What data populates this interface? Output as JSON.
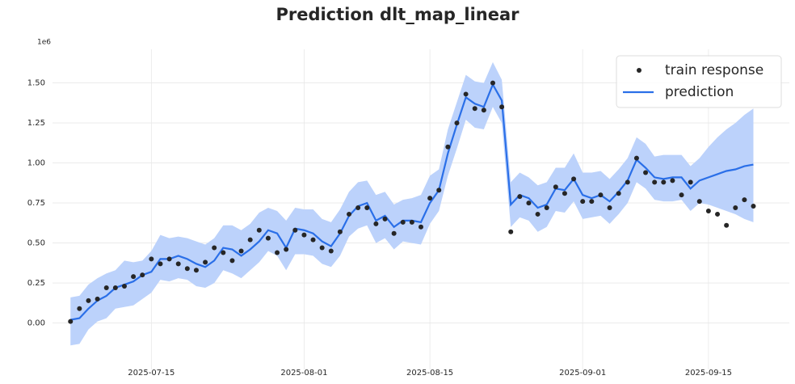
{
  "chart_data": {
    "type": "line",
    "title": "Prediction dlt_map_linear",
    "y_offset_label": "1e6",
    "x": [
      "2025-07-06",
      "2025-07-07",
      "2025-07-08",
      "2025-07-09",
      "2025-07-10",
      "2025-07-11",
      "2025-07-12",
      "2025-07-13",
      "2025-07-14",
      "2025-07-15",
      "2025-07-16",
      "2025-07-17",
      "2025-07-18",
      "2025-07-19",
      "2025-07-20",
      "2025-07-21",
      "2025-07-22",
      "2025-07-23",
      "2025-07-24",
      "2025-07-25",
      "2025-07-26",
      "2025-07-27",
      "2025-07-28",
      "2025-07-29",
      "2025-07-30",
      "2025-07-31",
      "2025-08-01",
      "2025-08-02",
      "2025-08-03",
      "2025-08-04",
      "2025-08-05",
      "2025-08-06",
      "2025-08-07",
      "2025-08-08",
      "2025-08-09",
      "2025-08-10",
      "2025-08-11",
      "2025-08-12",
      "2025-08-13",
      "2025-08-14",
      "2025-08-15",
      "2025-08-16",
      "2025-08-17",
      "2025-08-18",
      "2025-08-19",
      "2025-08-20",
      "2025-08-21",
      "2025-08-22",
      "2025-08-23",
      "2025-08-24",
      "2025-08-25",
      "2025-08-26",
      "2025-08-27",
      "2025-08-28",
      "2025-08-29",
      "2025-08-30",
      "2025-08-31",
      "2025-09-01",
      "2025-09-02",
      "2025-09-03",
      "2025-09-04",
      "2025-09-05",
      "2025-09-06",
      "2025-09-07",
      "2025-09-08",
      "2025-09-09",
      "2025-09-10",
      "2025-09-11",
      "2025-09-12",
      "2025-09-13",
      "2025-09-14",
      "2025-09-15",
      "2025-09-16",
      "2025-09-17",
      "2025-09-18",
      "2025-09-19",
      "2025-09-20"
    ],
    "series": [
      {
        "name": "train response",
        "type": "scatter",
        "color": "#262626",
        "values": [
          0.01,
          0.09,
          0.14,
          0.15,
          0.22,
          0.22,
          0.23,
          0.29,
          0.3,
          0.4,
          0.37,
          0.4,
          0.37,
          0.34,
          0.33,
          0.38,
          0.47,
          0.44,
          0.39,
          0.45,
          0.52,
          0.58,
          0.53,
          0.44,
          0.46,
          0.58,
          0.55,
          0.52,
          0.47,
          0.45,
          0.57,
          0.68,
          0.72,
          0.72,
          0.62,
          0.65,
          0.56,
          0.63,
          0.63,
          0.6,
          0.78,
          0.83,
          1.1,
          1.25,
          1.43,
          1.34,
          1.33,
          1.5,
          1.35,
          0.57,
          0.79,
          0.75,
          0.68,
          0.72,
          0.85,
          0.81,
          0.9,
          0.76,
          0.76,
          0.8,
          0.72,
          0.81,
          0.88,
          1.03,
          0.94,
          0.88,
          0.88,
          0.89,
          0.8,
          0.88,
          0.76,
          0.7,
          0.68,
          0.61,
          0.72,
          0.77,
          0.73
        ]
      },
      {
        "name": "prediction",
        "type": "line",
        "color": "#2a6fe8",
        "band_color": "#bcd2fb",
        "values": [
          0.02,
          0.03,
          0.09,
          0.14,
          0.17,
          0.22,
          0.24,
          0.26,
          0.3,
          0.32,
          0.4,
          0.4,
          0.42,
          0.4,
          0.37,
          0.35,
          0.39,
          0.47,
          0.46,
          0.42,
          0.46,
          0.51,
          0.58,
          0.56,
          0.47,
          0.59,
          0.58,
          0.56,
          0.51,
          0.48,
          0.56,
          0.67,
          0.73,
          0.75,
          0.64,
          0.67,
          0.6,
          0.64,
          0.64,
          0.63,
          0.75,
          0.83,
          1.06,
          1.24,
          1.41,
          1.37,
          1.35,
          1.49,
          1.39,
          0.74,
          0.8,
          0.78,
          0.72,
          0.74,
          0.84,
          0.83,
          0.9,
          0.8,
          0.78,
          0.8,
          0.76,
          0.82,
          0.89,
          1.02,
          0.97,
          0.91,
          0.9,
          0.91,
          0.91,
          0.84,
          0.89,
          0.91,
          0.93,
          0.95,
          0.96,
          0.98,
          0.99
        ],
        "upper": [
          0.16,
          0.17,
          0.24,
          0.28,
          0.31,
          0.33,
          0.39,
          0.38,
          0.39,
          0.45,
          0.55,
          0.53,
          0.54,
          0.53,
          0.51,
          0.49,
          0.53,
          0.61,
          0.61,
          0.58,
          0.62,
          0.69,
          0.72,
          0.7,
          0.64,
          0.72,
          0.71,
          0.71,
          0.65,
          0.63,
          0.71,
          0.82,
          0.88,
          0.89,
          0.8,
          0.82,
          0.74,
          0.77,
          0.78,
          0.8,
          0.92,
          0.96,
          1.21,
          1.38,
          1.55,
          1.51,
          1.5,
          1.63,
          1.52,
          0.88,
          0.94,
          0.91,
          0.86,
          0.88,
          0.97,
          0.97,
          1.06,
          0.94,
          0.94,
          0.95,
          0.9,
          0.96,
          1.03,
          1.16,
          1.12,
          1.04,
          1.05,
          1.05,
          1.05,
          0.98,
          1.03,
          1.1,
          1.16,
          1.21,
          1.25,
          1.3,
          1.34
        ],
        "lower": [
          -0.14,
          -0.13,
          -0.04,
          0.01,
          0.03,
          0.09,
          0.1,
          0.11,
          0.15,
          0.19,
          0.27,
          0.26,
          0.28,
          0.27,
          0.23,
          0.22,
          0.25,
          0.33,
          0.31,
          0.28,
          0.33,
          0.38,
          0.45,
          0.42,
          0.33,
          0.43,
          0.43,
          0.42,
          0.37,
          0.35,
          0.42,
          0.54,
          0.59,
          0.61,
          0.5,
          0.53,
          0.46,
          0.51,
          0.5,
          0.49,
          0.62,
          0.7,
          0.92,
          1.09,
          1.27,
          1.22,
          1.21,
          1.35,
          1.25,
          0.6,
          0.66,
          0.64,
          0.57,
          0.6,
          0.7,
          0.69,
          0.76,
          0.65,
          0.66,
          0.67,
          0.62,
          0.68,
          0.75,
          0.88,
          0.84,
          0.77,
          0.76,
          0.76,
          0.77,
          0.7,
          0.75,
          0.74,
          0.72,
          0.7,
          0.68,
          0.65,
          0.63
        ]
      }
    ],
    "xlim": [
      "2025-07-04",
      "2025-09-24"
    ],
    "xticks": [
      "2025-07-15",
      "2025-08-01",
      "2025-08-15",
      "2025-09-01",
      "2025-09-15"
    ],
    "ylim": [
      -0.29,
      1.71
    ],
    "yticks": [
      {
        "value": 0,
        "label": "0.00"
      },
      {
        "value": 0.25,
        "label": "0.25"
      },
      {
        "value": 0.5,
        "label": "0.50"
      },
      {
        "value": 0.75,
        "label": "0.75"
      },
      {
        "value": 1,
        "label": "1.00"
      },
      {
        "value": 1.25,
        "label": "1.25"
      },
      {
        "value": 1.5,
        "label": "1.50"
      }
    ],
    "grid": true,
    "legend": "upper right"
  }
}
